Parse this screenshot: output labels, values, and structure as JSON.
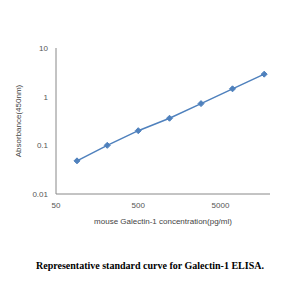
{
  "chart_data": {
    "type": "line",
    "title": "Representative standard curve for Galectin-1 ELISA.",
    "x_label": "mouse Galectin-1 concentration(pg/ml)",
    "y_label": "Absorbance(450nm)",
    "x": [
      90,
      210,
      500,
      1200,
      2900,
      7000,
      17000
    ],
    "values": [
      0.048,
      0.1,
      0.2,
      0.36,
      0.72,
      1.45,
      2.9
    ],
    "color": "#4f81bd",
    "marker": "diamond",
    "log": true,
    "xlim": [
      50,
      20000
    ],
    "xticks": [
      50,
      500,
      5000
    ],
    "ylim": [
      0.01,
      10
    ],
    "yticks": [
      0.01,
      0.1,
      1,
      10
    ],
    "grid": false
  }
}
